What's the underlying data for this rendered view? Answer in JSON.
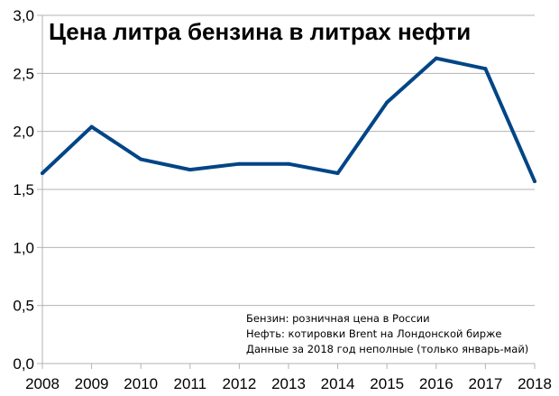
{
  "chart_data": {
    "type": "line",
    "title": "Цена литра бензина в литрах нефти",
    "x": [
      "2008",
      "2009",
      "2010",
      "2011",
      "2012",
      "2013",
      "2014",
      "2015",
      "2016",
      "2017",
      "2018"
    ],
    "series": [
      {
        "values": [
          1.64,
          2.04,
          1.76,
          1.67,
          1.72,
          1.72,
          1.64,
          2.25,
          2.63,
          2.54,
          1.57
        ]
      }
    ],
    "ylim": [
      0,
      3.0
    ],
    "yticks": [
      "0,0",
      "0,5",
      "1,0",
      "1,5",
      "2,0",
      "2,5",
      "3,0"
    ],
    "grid": true,
    "notes": [
      "Бензин: розничная цена в России",
      "Нефть: котировки Brent на Лондонской бирже",
      "Данные за 2018 год неполные (только январь-май)"
    ],
    "colors": {
      "line": "#004586",
      "grid": "#b3b3b3"
    }
  }
}
